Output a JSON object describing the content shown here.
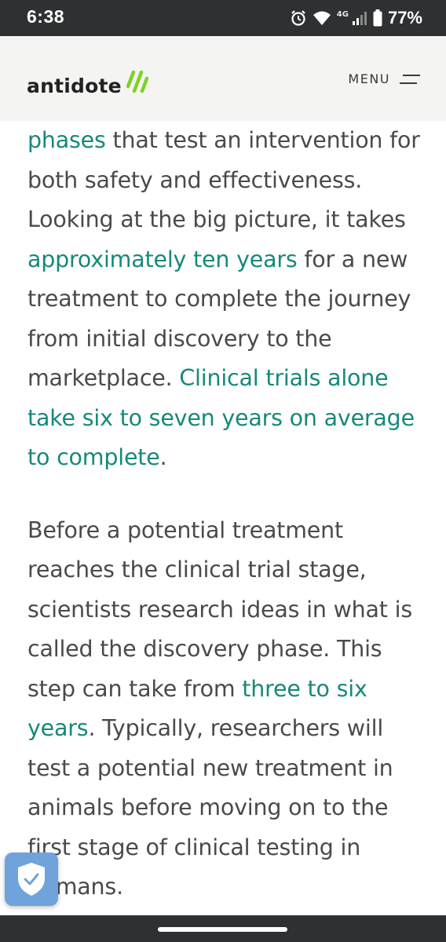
{
  "status_bar": {
    "time": "6:38",
    "network": "4G",
    "battery": "77%",
    "icons": [
      "alarm-icon",
      "wifi-icon",
      "signal-icon",
      "battery-icon"
    ]
  },
  "header": {
    "logo_text": "antidote",
    "menu_label": "MENU",
    "colors": {
      "accent": "#7ed321",
      "background": "#f4f4f2"
    }
  },
  "article": {
    "link_color": "#16897a",
    "text_color": "#4a4a4a",
    "p1": {
      "link1": "phases",
      "text1": " that test an intervention for both safety and effectiveness. Looking at the big picture, it takes ",
      "link2": "approximately ten years",
      "text2": " for a new treatment to complete the journey from initial discovery to the marketplace. ",
      "link3": "Clinical trials alone take six to seven years on average to complete",
      "text3": "."
    },
    "p2": {
      "text1": "Before a potential treatment reaches the clinical trial stage, scientists research ideas in what is called the discovery phase. This step can take from ",
      "link1": "three to six years",
      "text2": ". Typically, researchers will test a potential new treatment in animals before moving on to the first stage of clinical testing in humans."
    }
  },
  "overlay": {
    "badge_icon": "shield-check-icon"
  }
}
